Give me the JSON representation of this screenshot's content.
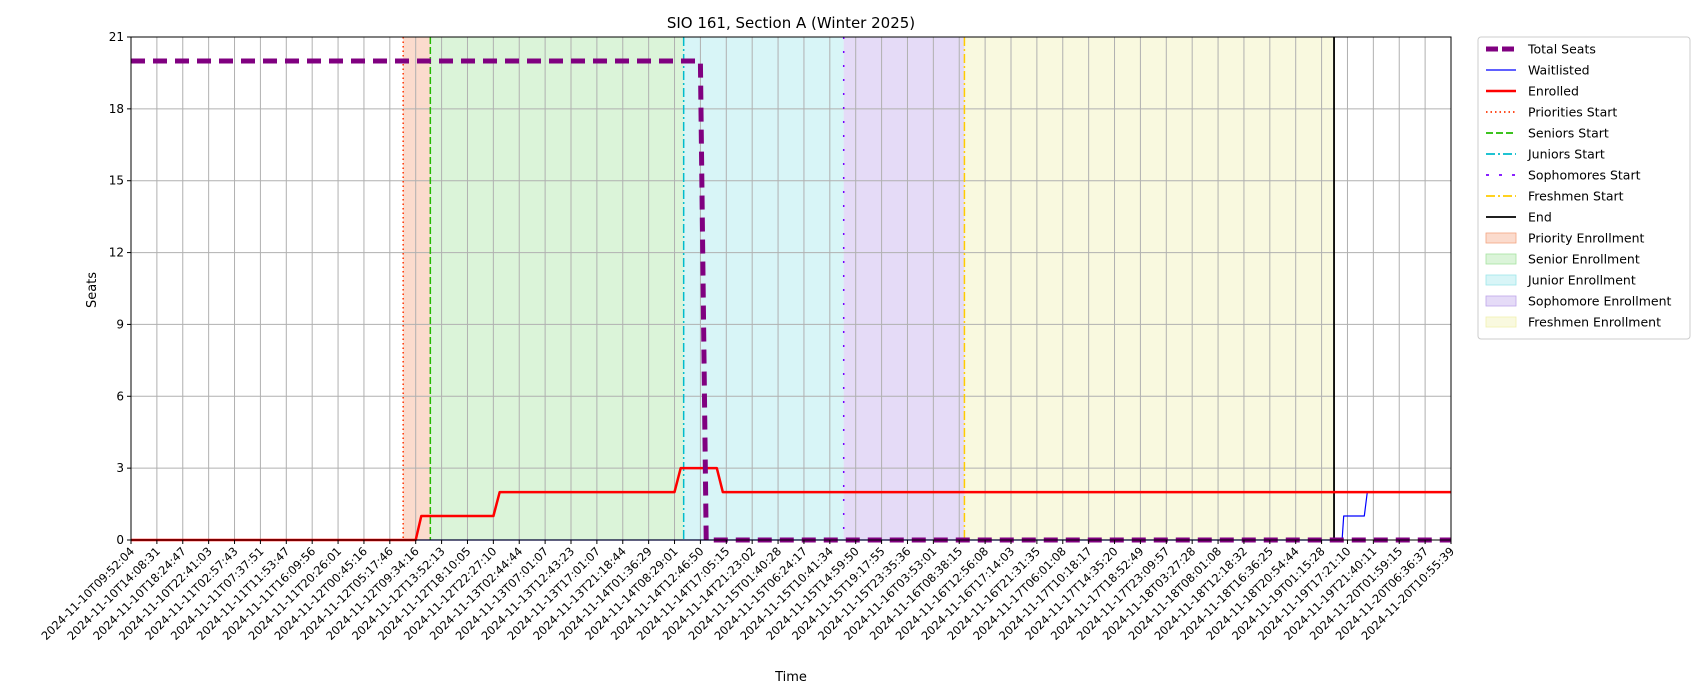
{
  "chart_data": {
    "type": "line",
    "title": "SIO 161, Section A (Winter 2025)",
    "xlabel": "Time",
    "ylabel": "Seats",
    "xlim": [
      "2024-11-10T09:52:04",
      "2024-11-20T10:55:39"
    ],
    "ylim": [
      0,
      21
    ],
    "yticks": [
      0,
      3,
      6,
      9,
      12,
      15,
      18,
      21
    ],
    "xticks": [
      "2024-11-10T09:52:04",
      "2024-11-10T14:08:31",
      "2024-11-10T18:24:47",
      "2024-11-10T22:41:03",
      "2024-11-11T02:57:43",
      "2024-11-11T07:37:51",
      "2024-11-11T11:53:47",
      "2024-11-11T16:09:56",
      "2024-11-11T20:26:01",
      "2024-11-12T00:45:16",
      "2024-11-12T05:17:46",
      "2024-11-12T09:34:16",
      "2024-11-12T13:52:13",
      "2024-11-12T18:10:05",
      "2024-11-12T22:27:10",
      "2024-11-13T02:44:44",
      "2024-11-13T07:01:07",
      "2024-11-13T12:43:23",
      "2024-11-13T17:01:07",
      "2024-11-13T21:18:44",
      "2024-11-14T01:36:29",
      "2024-11-14T08:29:01",
      "2024-11-14T12:46:50",
      "2024-11-14T17:05:15",
      "2024-11-14T21:23:02",
      "2024-11-15T01:40:28",
      "2024-11-15T06:24:17",
      "2024-11-15T10:41:34",
      "2024-11-15T14:59:50",
      "2024-11-15T19:17:55",
      "2024-11-15T23:35:36",
      "2024-11-16T03:53:01",
      "2024-11-16T08:38:15",
      "2024-11-16T12:56:08",
      "2024-11-16T17:14:03",
      "2024-11-16T21:31:35",
      "2024-11-17T06:01:08",
      "2024-11-17T10:18:17",
      "2024-11-17T14:35:20",
      "2024-11-17T18:52:49",
      "2024-11-17T23:09:57",
      "2024-11-18T03:27:28",
      "2024-11-18T08:01:08",
      "2024-11-18T12:18:32",
      "2024-11-18T16:36:25",
      "2024-11-18T20:54:44",
      "2024-11-19T01:15:28",
      "2024-11-19T17:21:10",
      "2024-11-19T21:40:11",
      "2024-11-20T01:59:15",
      "2024-11-20T06:36:37",
      "2024-11-20T10:55:39"
    ],
    "grid": true,
    "legend_position": "outside-top-right",
    "series": [
      {
        "name": "Total Seats",
        "color": "#800080",
        "style": "dashed-thick",
        "points": [
          [
            "2024-11-10T09:52:04",
            20
          ],
          [
            "2024-11-14T12:46:50",
            20
          ],
          [
            "2024-11-14T13:45:00",
            0
          ],
          [
            "2024-11-20T10:55:39",
            0
          ]
        ]
      },
      {
        "name": "Waitlisted",
        "color": "#0000ff",
        "style": "solid-thin",
        "points": [
          [
            "2024-11-10T09:52:04",
            0
          ],
          [
            "2024-11-19T14:00:00",
            0
          ],
          [
            "2024-11-19T15:00:00",
            1
          ],
          [
            "2024-11-19T20:10:00",
            1
          ],
          [
            "2024-11-19T20:40:00",
            2
          ]
        ]
      },
      {
        "name": "Enrolled",
        "color": "#ff0000",
        "style": "solid",
        "points": [
          [
            "2024-11-10T09:52:04",
            0
          ],
          [
            "2024-11-12T09:34:16",
            0
          ],
          [
            "2024-11-12T10:30:00",
            1
          ],
          [
            "2024-11-12T22:27:10",
            1
          ],
          [
            "2024-11-12T23:30:00",
            2
          ],
          [
            "2024-11-14T08:29:01",
            2
          ],
          [
            "2024-11-14T09:30:00",
            3
          ],
          [
            "2024-11-14T15:30:00",
            3
          ],
          [
            "2024-11-14T16:30:00",
            2
          ],
          [
            "2024-11-20T10:55:39",
            2
          ]
        ]
      }
    ],
    "vlines": [
      {
        "name": "Priorities Start",
        "color": "#ff3300",
        "style": "dotted",
        "x": "2024-11-12T07:30:00"
      },
      {
        "name": "Seniors Start",
        "color": "#22bb00",
        "style": "dashed",
        "x": "2024-11-12T12:00:00"
      },
      {
        "name": "Juniors Start",
        "color": "#00bbcc",
        "style": "dashdot",
        "x": "2024-11-14T10:00:00"
      },
      {
        "name": "Sophomores Start",
        "color": "#7700ff",
        "style": "dashdot-sparse",
        "x": "2024-11-15T13:00:00"
      },
      {
        "name": "Freshmen Start",
        "color": "#ffcc00",
        "style": "dashdot",
        "x": "2024-11-16T09:30:00"
      },
      {
        "name": "End",
        "color": "#000000",
        "style": "solid",
        "x": "2024-11-19T09:00:00"
      }
    ],
    "spans": [
      {
        "name": "Priority Enrollment",
        "color": "#f4a582",
        "from": "2024-11-12T07:30:00",
        "to": "2024-11-12T12:00:00"
      },
      {
        "name": "Senior Enrollment",
        "color": "#a6e3a1",
        "from": "2024-11-12T12:00:00",
        "to": "2024-11-14T10:00:00"
      },
      {
        "name": "Junior Enrollment",
        "color": "#9ee6ea",
        "from": "2024-11-14T10:00:00",
        "to": "2024-11-15T13:00:00"
      },
      {
        "name": "Sophomore Enrollment",
        "color": "#bfa6ea",
        "from": "2024-11-15T13:00:00",
        "to": "2024-11-16T09:30:00"
      },
      {
        "name": "Freshmen Enrollment",
        "color": "#f0f0b0",
        "from": "2024-11-16T09:30:00",
        "to": "2024-11-19T09:00:00"
      }
    ],
    "legend": [
      "Total Seats",
      "Waitlisted",
      "Enrolled",
      "Priorities Start",
      "Seniors Start",
      "Juniors Start",
      "Sophomores Start",
      "Freshmen Start",
      "End",
      "Priority Enrollment",
      "Senior Enrollment",
      "Junior Enrollment",
      "Sophomore Enrollment",
      "Freshmen Enrollment"
    ]
  }
}
